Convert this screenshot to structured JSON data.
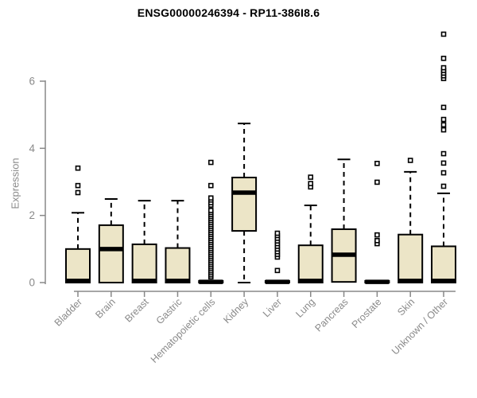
{
  "chart_data": {
    "type": "box",
    "title": "ENSG00000246394 - RP11-386I8.6",
    "ylabel": "Expression",
    "xlabel": "",
    "yticks": [
      0,
      2,
      4,
      6
    ],
    "ylim": [
      0,
      7.5
    ],
    "grid": false,
    "legend": "none",
    "colors": {
      "box_fill": "#ece5c7",
      "box_stroke": "#000000",
      "median": "#000000",
      "whisker": "#000000",
      "axis": "#888888",
      "tick_label": "#8a8a8a",
      "title": "#000000"
    },
    "categories": [
      {
        "label": "Bladder",
        "q1": 0,
        "median": 0.05,
        "q3": 1.0,
        "whisker_low": 0,
        "whisker_high": 2.08,
        "outliers": [
          2.68,
          2.89,
          3.41
        ]
      },
      {
        "label": "Brain",
        "q1": 0,
        "median": 1.0,
        "q3": 1.71,
        "whisker_low": 0,
        "whisker_high": 2.49,
        "outliers": []
      },
      {
        "label": "Breast",
        "q1": 0,
        "median": 0.05,
        "q3": 1.14,
        "whisker_low": 0,
        "whisker_high": 2.44,
        "outliers": []
      },
      {
        "label": "Gastric",
        "q1": 0,
        "median": 0.05,
        "q3": 1.03,
        "whisker_low": 0,
        "whisker_high": 2.44,
        "outliers": []
      },
      {
        "label": "Hematopoietic cells",
        "q1": 0,
        "median": 0.02,
        "q3": 0.05,
        "whisker_low": 0,
        "whisker_high": 0.05,
        "outliers": [
          0.17,
          0.23,
          0.29,
          0.35,
          0.41,
          0.47,
          0.53,
          0.59,
          0.65,
          0.71,
          0.77,
          0.83,
          0.89,
          0.95,
          1.01,
          1.07,
          1.13,
          1.19,
          1.25,
          1.31,
          1.37,
          1.43,
          1.49,
          1.55,
          1.61,
          1.67,
          1.73,
          1.79,
          1.85,
          1.91,
          1.97,
          2.03,
          2.09,
          2.15,
          2.31,
          2.38,
          2.46,
          2.52,
          2.89,
          3.58
        ]
      },
      {
        "label": "Kidney",
        "q1": 1.54,
        "median": 2.68,
        "q3": 3.13,
        "whisker_low": 0,
        "whisker_high": 4.74,
        "outliers": []
      },
      {
        "label": "Liver",
        "q1": 0,
        "median": 0.02,
        "q3": 0.05,
        "whisker_low": 0,
        "whisker_high": 0.05,
        "outliers": [
          0.36,
          0.76,
          0.84,
          0.92,
          1.0,
          1.08,
          1.16,
          1.24,
          1.32,
          1.4,
          1.47
        ]
      },
      {
        "label": "Lung",
        "q1": 0,
        "median": 0.05,
        "q3": 1.11,
        "whisker_low": 0,
        "whisker_high": 2.3,
        "outliers": [
          2.85,
          2.95,
          3.14
        ]
      },
      {
        "label": "Pancreas",
        "q1": 0.02,
        "median": 0.83,
        "q3": 1.59,
        "whisker_low": 0.02,
        "whisker_high": 3.67,
        "outliers": []
      },
      {
        "label": "Prostate",
        "q1": 0,
        "median": 0.02,
        "q3": 0.05,
        "whisker_low": 0,
        "whisker_high": 0.05,
        "outliers": [
          1.16,
          1.25,
          1.42,
          2.99,
          3.55
        ]
      },
      {
        "label": "Skin",
        "q1": 0,
        "median": 0.05,
        "q3": 1.43,
        "whisker_low": 0,
        "whisker_high": 3.3,
        "outliers": [
          3.64
        ]
      },
      {
        "label": "Unknown / Other",
        "q1": 0,
        "median": 0.05,
        "q3": 1.08,
        "whisker_low": 0,
        "whisker_high": 2.66,
        "outliers": [
          2.87,
          3.27,
          3.56,
          3.84,
          4.55,
          4.7,
          4.86,
          5.22,
          6.08,
          6.16,
          6.24,
          6.32,
          6.4,
          6.68,
          7.4
        ]
      }
    ]
  }
}
